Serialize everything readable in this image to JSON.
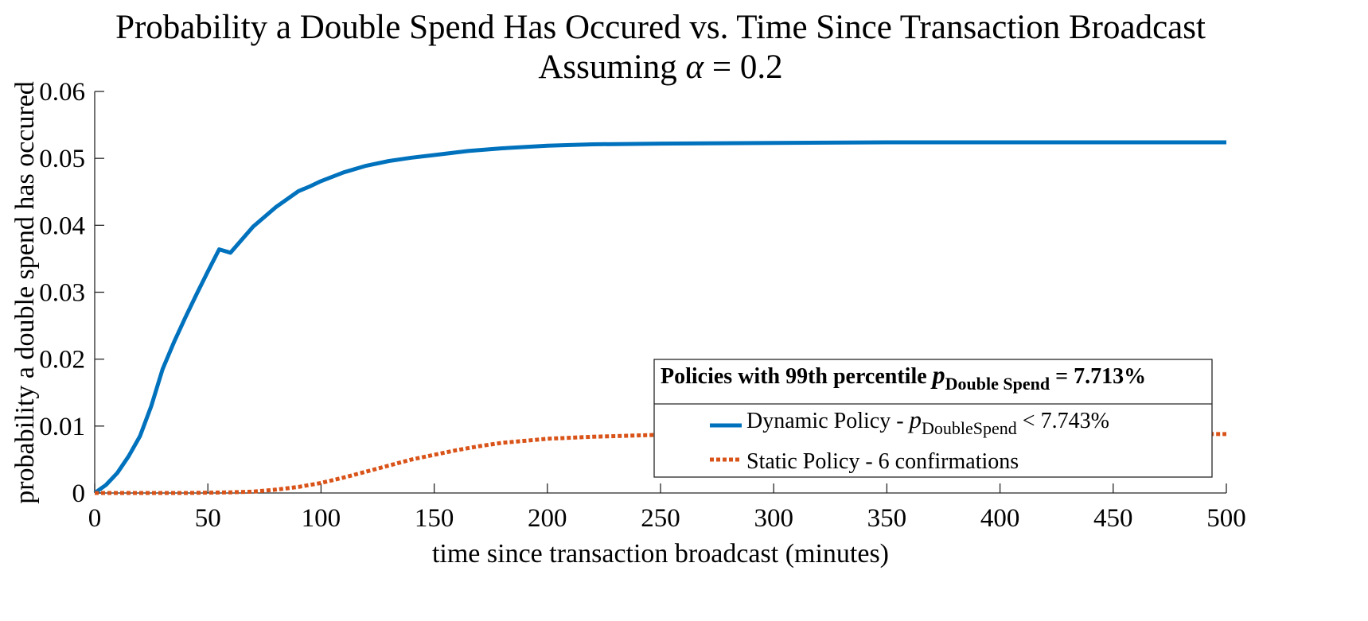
{
  "chart_data": {
    "type": "line",
    "title_line1": "Probability a Double Spend Has Occured vs. Time Since Transaction Broadcast",
    "title_line2_prefix": "Assuming ",
    "title_line2_symbol": "α",
    "title_line2_suffix": " = 0.2",
    "xlabel": "time since transaction broadcast (minutes)",
    "ylabel": "probability a double spend has occured",
    "xlim": [
      0,
      500
    ],
    "ylim": [
      0,
      0.06
    ],
    "xticks": [
      0,
      50,
      100,
      150,
      200,
      250,
      300,
      350,
      400,
      450,
      500
    ],
    "xtick_labels": [
      "0",
      "50",
      "100",
      "150",
      "200",
      "250",
      "300",
      "350",
      "400",
      "450",
      "500"
    ],
    "yticks": [
      0,
      0.01,
      0.02,
      0.03,
      0.04,
      0.05,
      0.06
    ],
    "ytick_labels": [
      "0",
      "0.01",
      "0.02",
      "0.03",
      "0.04",
      "0.05",
      "0.06"
    ],
    "legend": {
      "position": "bottom-right",
      "title_prefix": "Policies with 99th percentile ",
      "title_p": "p",
      "title_sub": "Double Spend",
      "title_suffix": " = 7.713%",
      "entry1_prefix": "Dynamic Policy -  ",
      "entry1_p": "p",
      "entry1_sub": "DoubleSpend",
      "entry1_suffix": " < 7.743%",
      "entry2_label": "Static Policy - 6 confirmations"
    },
    "series": [
      {
        "name": "Dynamic Policy",
        "color": "#0072bd",
        "style": "solid",
        "x": [
          0,
          5,
          10,
          15,
          20,
          25,
          30,
          35,
          40,
          45,
          50,
          55,
          60,
          70,
          80,
          90,
          95,
          100,
          110,
          120,
          130,
          140,
          150,
          165,
          180,
          200,
          220,
          250,
          300,
          350,
          400,
          450,
          500
        ],
        "y": [
          0,
          0.0012,
          0.003,
          0.0055,
          0.0085,
          0.013,
          0.0185,
          0.0225,
          0.0262,
          0.0297,
          0.0331,
          0.0364,
          0.0359,
          0.0398,
          0.0427,
          0.0451,
          0.0458,
          0.0466,
          0.0479,
          0.0489,
          0.0496,
          0.0501,
          0.0505,
          0.0511,
          0.0515,
          0.0519,
          0.0521,
          0.0522,
          0.0523,
          0.0524,
          0.0524,
          0.0524,
          0.0524
        ]
      },
      {
        "name": "Static Policy",
        "color": "#d95319",
        "style": "dotted",
        "x": [
          0,
          20,
          40,
          60,
          70,
          80,
          90,
          100,
          110,
          120,
          130,
          140,
          150,
          160,
          170,
          180,
          190,
          200,
          220,
          250,
          300,
          350,
          400,
          450,
          500
        ],
        "y": [
          0,
          0,
          0,
          0.0001,
          0.0002,
          0.0005,
          0.0009,
          0.0015,
          0.0023,
          0.0032,
          0.0041,
          0.005,
          0.0057,
          0.0064,
          0.007,
          0.0075,
          0.0078,
          0.0081,
          0.0084,
          0.0087,
          0.0088,
          0.0088,
          0.0088,
          0.0088,
          0.0088
        ]
      }
    ]
  }
}
